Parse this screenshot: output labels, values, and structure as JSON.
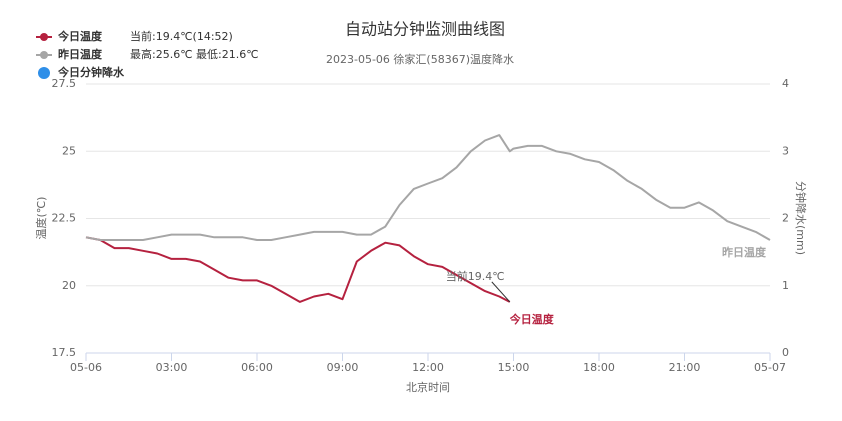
{
  "chart_data": {
    "type": "line",
    "title": "自动站分钟监测曲线图",
    "subtitle": "2023-05-06 徐家汇(58367)温度降水",
    "x_label": "北京时间",
    "y_label": "温度(℃)",
    "y2_label": "分钟降水(mm)",
    "legend_notes": [
      "当前:19.4℃(14:52)",
      "最高:25.6℃ 最低:21.6℃"
    ],
    "annotations": [
      "当前19.4℃",
      "今日温度",
      "昨日温度"
    ],
    "x": [
      0,
      0.5,
      1,
      1.5,
      2,
      2.5,
      3,
      3.5,
      4,
      4.5,
      5,
      5.5,
      6,
      6.5,
      7,
      7.5,
      8,
      8.5,
      9,
      9.5,
      10,
      10.5,
      11,
      11.5,
      12,
      12.5,
      13,
      13.5,
      14,
      14.5,
      14.87,
      15,
      15.5,
      16,
      16.5,
      17,
      17.5,
      18,
      18.5,
      19,
      19.5,
      20,
      20.5,
      21,
      21.5,
      22,
      22.5,
      23,
      23.5,
      24
    ],
    "series": [
      {
        "name": "今日温度",
        "color": "#b5213f",
        "values": [
          21.8,
          21.7,
          21.4,
          21.4,
          21.3,
          21.2,
          21.0,
          21.0,
          20.9,
          20.6,
          20.3,
          20.2,
          20.2,
          20.0,
          19.7,
          19.4,
          19.6,
          19.7,
          19.5,
          20.9,
          21.3,
          21.6,
          21.5,
          21.1,
          20.8,
          20.7,
          20.4,
          20.1,
          19.8,
          19.6,
          19.4,
          null,
          null,
          null,
          null,
          null,
          null,
          null,
          null,
          null,
          null,
          null,
          null,
          null,
          null,
          null,
          null,
          null,
          null,
          null
        ]
      },
      {
        "name": "昨日温度",
        "color": "#a6a6a6",
        "values": [
          21.8,
          21.7,
          21.7,
          21.7,
          21.7,
          21.8,
          21.9,
          21.9,
          21.9,
          21.8,
          21.8,
          21.8,
          21.7,
          21.7,
          21.8,
          21.9,
          22.0,
          22.0,
          22.0,
          21.9,
          21.9,
          22.2,
          23.0,
          23.6,
          23.8,
          24.0,
          24.4,
          25.0,
          25.4,
          25.6,
          25.0,
          25.1,
          25.2,
          25.2,
          25.0,
          24.9,
          24.7,
          24.6,
          24.3,
          23.9,
          23.6,
          23.2,
          22.9,
          22.9,
          23.1,
          22.8,
          22.4,
          22.2,
          22.0,
          21.7
        ]
      },
      {
        "name": "今日分钟降水",
        "color": "#2f8fe8",
        "axis": "y2",
        "values": [
          null,
          null,
          null,
          null,
          null,
          null,
          null,
          null,
          null,
          null,
          null,
          null,
          null,
          null,
          null,
          null,
          null,
          null,
          null,
          null,
          null,
          null,
          null,
          null,
          null,
          null,
          null,
          null,
          null,
          null,
          null,
          null,
          null,
          null,
          null,
          null,
          null,
          null,
          null,
          null,
          null,
          null,
          null,
          null,
          null,
          null,
          null,
          null,
          null,
          null
        ]
      }
    ],
    "xlim": [
      0,
      24
    ],
    "xticks": [
      {
        "value": 0,
        "label": "05-06"
      },
      {
        "value": 3,
        "label": "03:00"
      },
      {
        "value": 6,
        "label": "06:00"
      },
      {
        "value": 9,
        "label": "09:00"
      },
      {
        "value": 12,
        "label": "12:00"
      },
      {
        "value": 15,
        "label": "15:00"
      },
      {
        "value": 18,
        "label": "18:00"
      },
      {
        "value": 21,
        "label": "21:00"
      },
      {
        "value": 24,
        "label": "05-07"
      }
    ],
    "ylim": [
      17.5,
      27.5
    ],
    "yticks": [
      17.5,
      20,
      22.5,
      25,
      27.5
    ],
    "y2lim": [
      0,
      4
    ],
    "y2ticks": [
      0,
      1,
      2,
      3,
      4
    ],
    "grid": true
  }
}
